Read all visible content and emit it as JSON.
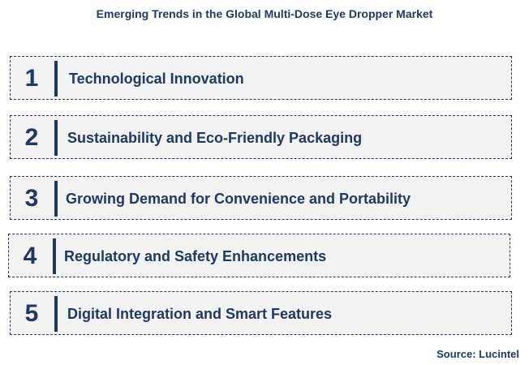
{
  "title": "Emerging Trends in the Global Multi-Dose Eye Dropper Market",
  "trends": [
    {
      "number": "1",
      "label": "Technological Innovation"
    },
    {
      "number": "2",
      "label": "Sustainability and Eco-Friendly Packaging"
    },
    {
      "number": "3",
      "label": "Growing Demand for Convenience and Portability"
    },
    {
      "number": "4",
      "label": "Regulatory and Safety Enhancements"
    },
    {
      "number": "5",
      "label": "Digital Integration and Smart Features"
    }
  ],
  "source": "Source: Lucintel",
  "colors": {
    "text": "#1f3864",
    "box_fill": "#f2f2f2",
    "background": "#ffffff"
  }
}
